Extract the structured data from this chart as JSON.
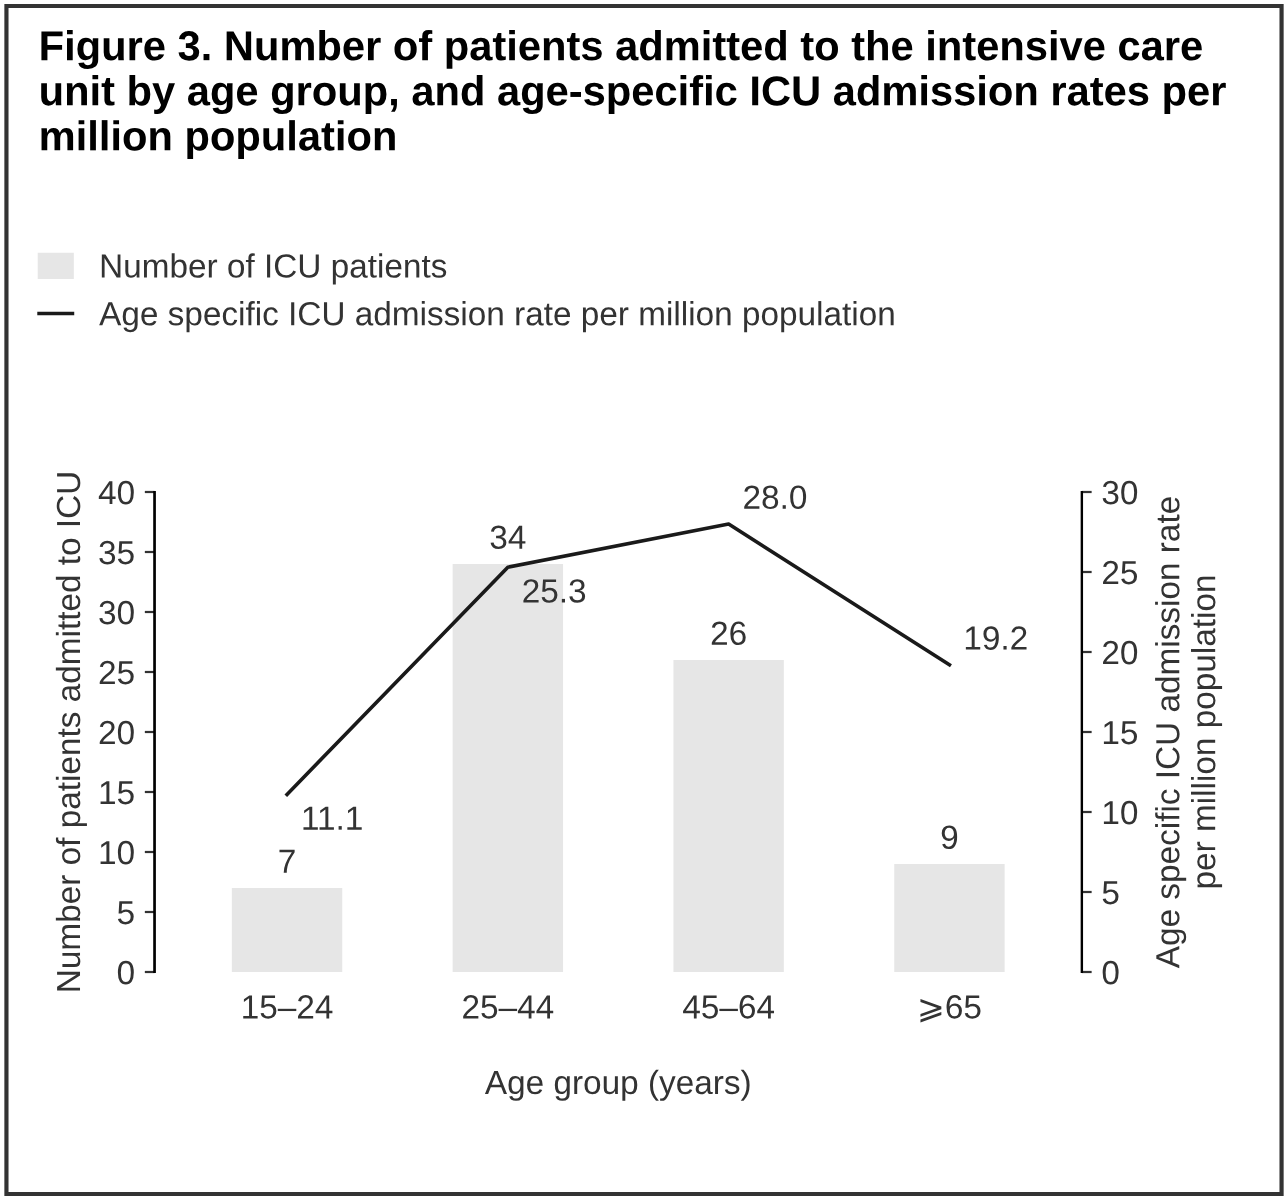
{
  "chart_data": {
    "type": "bar",
    "title": "Figure 3. Number of patients admitted to the intensive care unit by age group, and age-specific ICU admission rates per million population",
    "categories": [
      "15–24",
      "25–44",
      "45–64",
      "⩾65"
    ],
    "series": [
      {
        "name": "Number of ICU patients",
        "color": "#e6e6e6",
        "values": [
          7,
          34,
          26,
          9
        ]
      },
      {
        "name": "Age specific ICU admission rate per million population",
        "type": "line",
        "axis": "y2",
        "color": "#1a1a1a",
        "values": [
          11.1,
          25.3,
          28.0,
          19.2
        ],
        "value_labels": [
          "11.1",
          "25.3",
          "28.0",
          "19.2"
        ]
      }
    ],
    "xlabel": "Age group (years)",
    "ylabel": "Number of patients admitted to ICU",
    "y2label": "Age specific ICU admission rate\nper million population",
    "ylim": [
      0,
      40
    ],
    "yticks": [
      0,
      5,
      10,
      15,
      20,
      25,
      30,
      35,
      40
    ],
    "y2lim": [
      0,
      30
    ],
    "y2ticks": [
      0,
      5,
      10,
      15,
      20,
      25,
      30
    ],
    "data_labels": true,
    "grid": false,
    "legend": "top left",
    "marker": "none",
    "line_style": "solid"
  }
}
